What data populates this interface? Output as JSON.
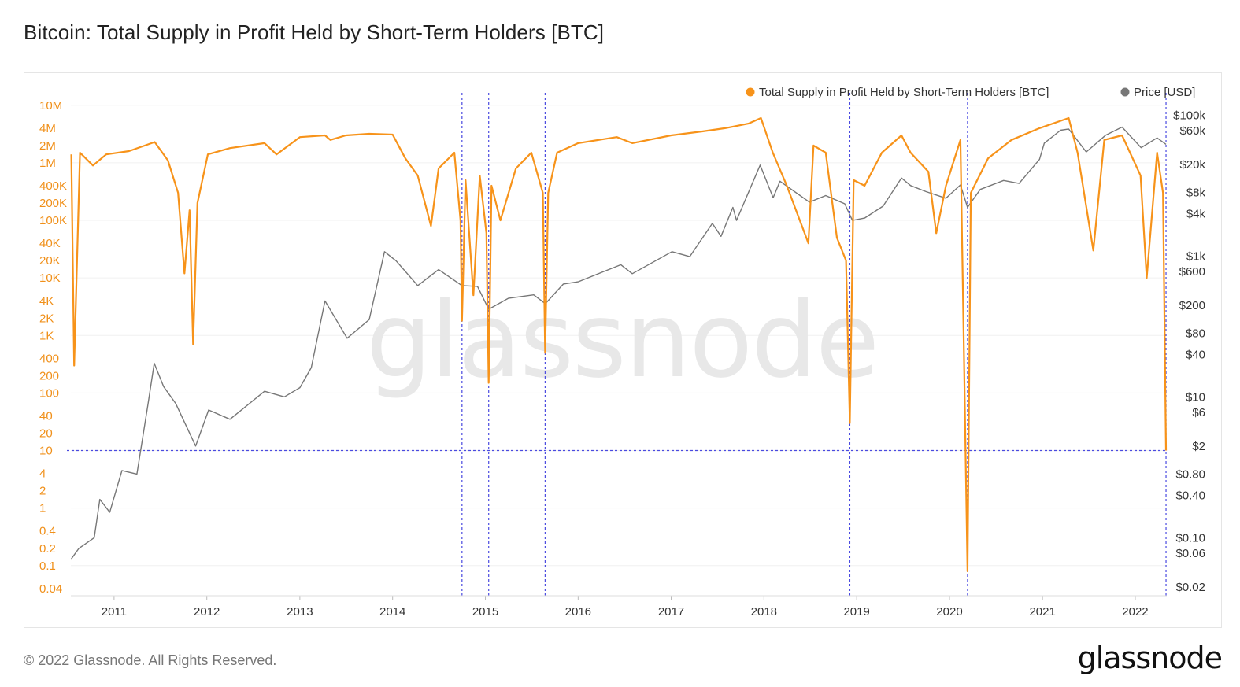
{
  "title": "Bitcoin: Total Supply in Profit Held by Short-Term Holders [BTC]",
  "footer": "© 2022 Glassnode. All Rights Reserved.",
  "brand": "glassnode",
  "watermark": "glassnode",
  "colors": {
    "supply": "#f7931a",
    "price": "#777777",
    "marker": "#4a4ae0",
    "grid": "#f0f0f0",
    "left_axis": "#f0901a"
  },
  "chart_data": {
    "type": "line",
    "title": "Bitcoin: Total Supply in Profit Held by Short-Term Holders [BTC]",
    "xlabel": "",
    "x_ticks": [
      "2011",
      "2012",
      "2013",
      "2014",
      "2015",
      "2016",
      "2017",
      "2018",
      "2019",
      "2020",
      "2021",
      "2022"
    ],
    "xlim": [
      "2010-07-15",
      "2022-05-05"
    ],
    "y_left": {
      "scale": "log",
      "ylim": [
        0.03,
        12000000
      ],
      "ticks": [
        "10M",
        "4M",
        "2M",
        "1M",
        "400K",
        "200K",
        "100K",
        "40K",
        "20K",
        "10K",
        "4K",
        "2K",
        "1K",
        "400",
        "200",
        "100",
        "40",
        "20",
        "10",
        "4",
        "2",
        "1",
        "0.4",
        "0.2",
        "0.1",
        "0.04"
      ]
    },
    "y_right": {
      "scale": "log",
      "ylim": [
        0.015,
        160000
      ],
      "ticks": [
        "$100k",
        "$60k",
        "$20k",
        "$8k",
        "$4k",
        "$1k",
        "$600",
        "$200",
        "$80",
        "$40",
        "$10",
        "$6",
        "$2",
        "$0.80",
        "$0.40",
        "$0.10",
        "$0.06",
        "$0.02"
      ]
    },
    "legend": [
      {
        "label": "Total Supply in Profit Held by Short-Term Holders [BTC]",
        "color": "#f7931a"
      },
      {
        "label": "Price [USD]",
        "color": "#777777"
      }
    ],
    "legend_position": "top-right",
    "grid": true,
    "reference_level": 10,
    "marker_dates": [
      "2014-10-01",
      "2015-01-14",
      "2015-08-24",
      "2018-12-05",
      "2020-03-12",
      "2022-05-02"
    ],
    "series": [
      {
        "name": "Total Supply in Profit Held by Short-Term Holders [BTC]",
        "axis": "left",
        "points": [
          [
            "2010-07-17",
            1400000
          ],
          [
            "2010-07-28",
            300
          ],
          [
            "2010-08-20",
            1500000
          ],
          [
            "2010-10-10",
            900000
          ],
          [
            "2010-12-01",
            1400000
          ],
          [
            "2011-03-01",
            1600000
          ],
          [
            "2011-06-10",
            2300000
          ],
          [
            "2011-08-01",
            1100000
          ],
          [
            "2011-09-10",
            300000
          ],
          [
            "2011-10-05",
            12000
          ],
          [
            "2011-10-25",
            150000
          ],
          [
            "2011-11-08",
            700
          ],
          [
            "2011-11-25",
            200000
          ],
          [
            "2012-01-05",
            1400000
          ],
          [
            "2012-04-01",
            1800000
          ],
          [
            "2012-08-15",
            2200000
          ],
          [
            "2012-10-01",
            1400000
          ],
          [
            "2013-01-01",
            2800000
          ],
          [
            "2013-04-10",
            3000000
          ],
          [
            "2013-05-01",
            2500000
          ],
          [
            "2013-07-01",
            3000000
          ],
          [
            "2013-10-01",
            3200000
          ],
          [
            "2014-01-01",
            3100000
          ],
          [
            "2014-02-20",
            1200000
          ],
          [
            "2014-04-10",
            600000
          ],
          [
            "2014-06-01",
            80000
          ],
          [
            "2014-07-01",
            800000
          ],
          [
            "2014-09-01",
            1500000
          ],
          [
            "2014-09-25",
            100000
          ],
          [
            "2014-10-01",
            1800
          ],
          [
            "2014-10-15",
            500000
          ],
          [
            "2014-11-15",
            5000
          ],
          [
            "2014-12-10",
            600000
          ],
          [
            "2015-01-05",
            60000
          ],
          [
            "2015-01-14",
            150
          ],
          [
            "2015-01-25",
            400000
          ],
          [
            "2015-03-01",
            100000
          ],
          [
            "2015-05-01",
            800000
          ],
          [
            "2015-07-01",
            1500000
          ],
          [
            "2015-08-15",
            300000
          ],
          [
            "2015-08-24",
            500
          ],
          [
            "2015-09-05",
            300000
          ],
          [
            "2015-10-10",
            1500000
          ],
          [
            "2016-01-01",
            2200000
          ],
          [
            "2016-06-01",
            2800000
          ],
          [
            "2016-08-01",
            2200000
          ],
          [
            "2017-01-01",
            3000000
          ],
          [
            "2017-05-01",
            3500000
          ],
          [
            "2017-08-01",
            4000000
          ],
          [
            "2017-11-01",
            4800000
          ],
          [
            "2017-12-20",
            6000000
          ],
          [
            "2018-02-05",
            1500000
          ],
          [
            "2018-04-01",
            400000
          ],
          [
            "2018-06-25",
            40000
          ],
          [
            "2018-07-15",
            2000000
          ],
          [
            "2018-09-01",
            1500000
          ],
          [
            "2018-10-15",
            50000
          ],
          [
            "2018-11-20",
            20000
          ],
          [
            "2018-12-05",
            30
          ],
          [
            "2018-12-20",
            500000
          ],
          [
            "2019-02-01",
            400000
          ],
          [
            "2019-04-10",
            1500000
          ],
          [
            "2019-06-26",
            3000000
          ],
          [
            "2019-08-01",
            1500000
          ],
          [
            "2019-10-10",
            700000
          ],
          [
            "2019-11-10",
            60000
          ],
          [
            "2019-12-18",
            400000
          ],
          [
            "2020-02-13",
            2500000
          ],
          [
            "2020-03-12",
            0.08
          ],
          [
            "2020-03-25",
            300000
          ],
          [
            "2020-06-01",
            1200000
          ],
          [
            "2020-09-01",
            2500000
          ],
          [
            "2020-12-20",
            4000000
          ],
          [
            "2021-04-14",
            6000000
          ],
          [
            "2021-05-19",
            1500000
          ],
          [
            "2021-07-20",
            30000
          ],
          [
            "2021-09-01",
            2500000
          ],
          [
            "2021-11-10",
            3000000
          ],
          [
            "2022-01-22",
            600000
          ],
          [
            "2022-02-15",
            10000
          ],
          [
            "2022-03-28",
            1500000
          ],
          [
            "2022-04-20",
            300000
          ],
          [
            "2022-05-02",
            10
          ]
        ]
      },
      {
        "name": "Price [USD]",
        "axis": "right",
        "points": [
          [
            "2010-07-17",
            0.05
          ],
          [
            "2010-08-15",
            0.07
          ],
          [
            "2010-10-15",
            0.1
          ],
          [
            "2010-11-06",
            0.35
          ],
          [
            "2010-12-15",
            0.23
          ],
          [
            "2011-02-01",
            0.9
          ],
          [
            "2011-04-01",
            0.8
          ],
          [
            "2011-05-15",
            8
          ],
          [
            "2011-06-08",
            30
          ],
          [
            "2011-07-15",
            14
          ],
          [
            "2011-09-01",
            8
          ],
          [
            "2011-11-18",
            2
          ],
          [
            "2012-01-08",
            6.5
          ],
          [
            "2012-04-01",
            4.8
          ],
          [
            "2012-08-15",
            12
          ],
          [
            "2012-11-01",
            10
          ],
          [
            "2013-01-01",
            13.5
          ],
          [
            "2013-02-15",
            26
          ],
          [
            "2013-04-10",
            230
          ],
          [
            "2013-07-06",
            68
          ],
          [
            "2013-10-01",
            125
          ],
          [
            "2013-11-30",
            1150
          ],
          [
            "2014-01-15",
            850
          ],
          [
            "2014-04-10",
            380
          ],
          [
            "2014-07-01",
            640
          ],
          [
            "2014-10-01",
            380
          ],
          [
            "2014-12-01",
            370
          ],
          [
            "2015-01-14",
            175
          ],
          [
            "2015-04-01",
            250
          ],
          [
            "2015-07-10",
            280
          ],
          [
            "2015-08-25",
            210
          ],
          [
            "2015-11-04",
            400
          ],
          [
            "2016-01-01",
            430
          ],
          [
            "2016-06-17",
            750
          ],
          [
            "2016-08-01",
            560
          ],
          [
            "2017-01-04",
            1150
          ],
          [
            "2017-03-15",
            980
          ],
          [
            "2017-06-12",
            2900
          ],
          [
            "2017-07-16",
            1900
          ],
          [
            "2017-09-01",
            4900
          ],
          [
            "2017-09-15",
            3200
          ],
          [
            "2017-12-17",
            19500
          ],
          [
            "2018-02-06",
            6700
          ],
          [
            "2018-03-05",
            11500
          ],
          [
            "2018-06-29",
            5800
          ],
          [
            "2018-09-01",
            7200
          ],
          [
            "2018-11-15",
            5500
          ],
          [
            "2018-12-15",
            3200
          ],
          [
            "2019-02-01",
            3450
          ],
          [
            "2019-04-15",
            5100
          ],
          [
            "2019-06-26",
            12800
          ],
          [
            "2019-08-01",
            10000
          ],
          [
            "2019-10-01",
            8200
          ],
          [
            "2019-12-18",
            6600
          ],
          [
            "2020-02-13",
            10200
          ],
          [
            "2020-03-12",
            4900
          ],
          [
            "2020-05-01",
            8800
          ],
          [
            "2020-08-01",
            11800
          ],
          [
            "2020-10-01",
            10700
          ],
          [
            "2020-12-20",
            23500
          ],
          [
            "2021-01-08",
            40000
          ],
          [
            "2021-03-13",
            61000
          ],
          [
            "2021-04-14",
            63500
          ],
          [
            "2021-06-22",
            30000
          ],
          [
            "2021-09-07",
            52000
          ],
          [
            "2021-11-10",
            67500
          ],
          [
            "2022-01-24",
            34500
          ],
          [
            "2022-03-28",
            47500
          ],
          [
            "2022-05-02",
            38500
          ]
        ]
      }
    ]
  }
}
